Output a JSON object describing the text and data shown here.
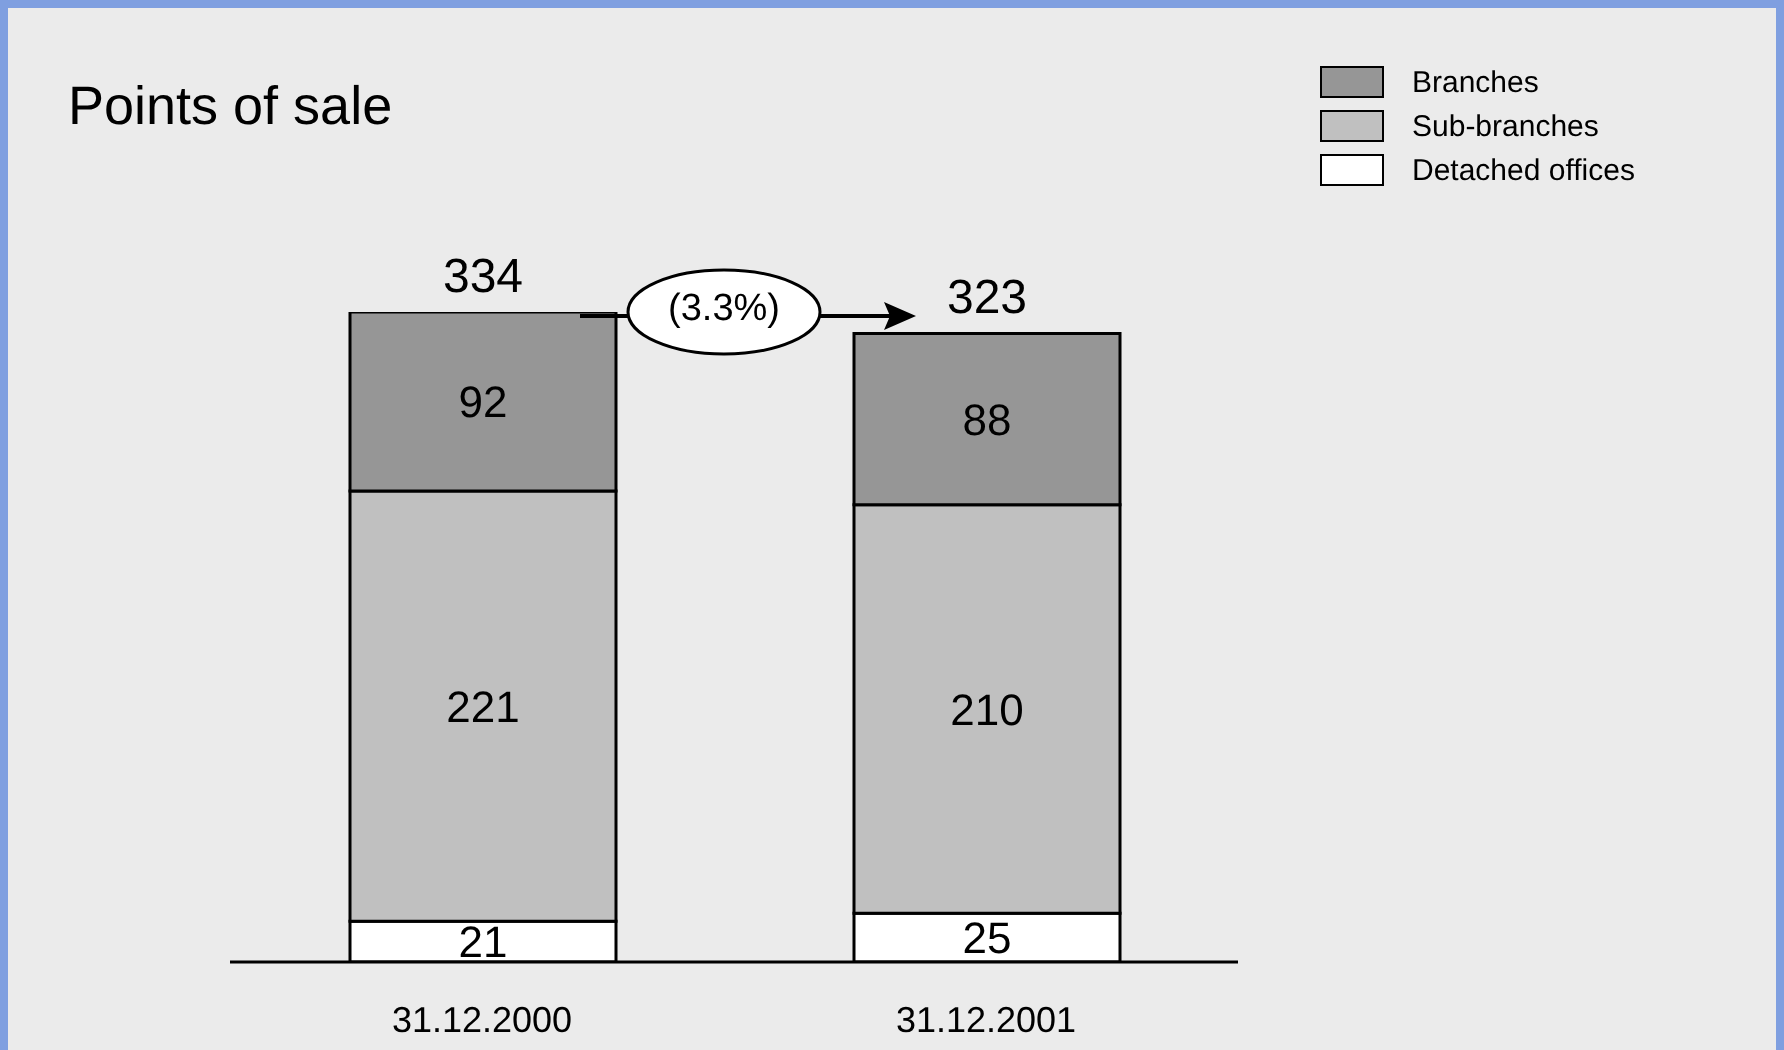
{
  "chart_data": {
    "type": "bar",
    "title": "Points of sale",
    "categories": [
      "31.12.2000",
      "31.12.2001"
    ],
    "stacked": true,
    "data_labels": true,
    "legend": "top right",
    "grid": false,
    "series": [
      {
        "name": "Detached offices",
        "color": "#ffffff",
        "values": [
          21,
          25
        ]
      },
      {
        "name": "Sub-branches",
        "color": "#c0c0c0",
        "values": [
          221,
          210
        ]
      },
      {
        "name": "Branches",
        "color": "#969696",
        "values": [
          92,
          88
        ]
      }
    ],
    "totals": [
      "334",
      "323"
    ],
    "annotations": [
      "(3.3%)"
    ]
  }
}
